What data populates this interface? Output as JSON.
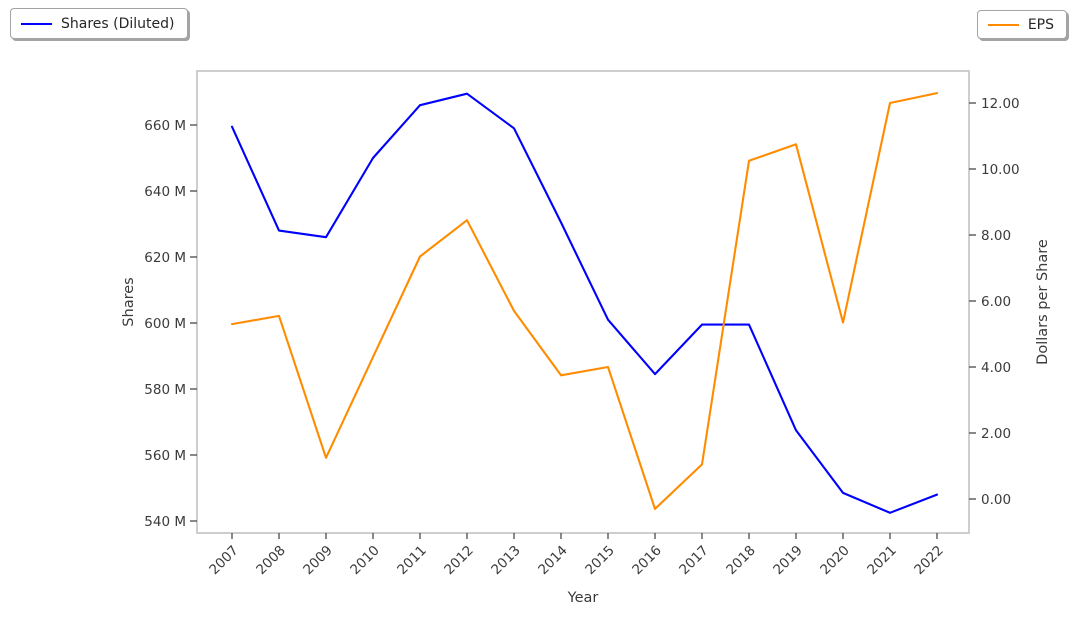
{
  "figure": {
    "legend_left": {
      "label": "Shares (Diluted)",
      "color": "#0000ff"
    },
    "legend_right": {
      "label": "EPS",
      "color": "#ff8c00"
    }
  },
  "chart_data": {
    "type": "line",
    "title": "",
    "xlabel": "Year",
    "ylabel_left": "Shares",
    "ylabel_right": "Dollars per Share",
    "categories": [
      "2007",
      "2008",
      "2009",
      "2010",
      "2011",
      "2012",
      "2013",
      "2014",
      "2015",
      "2016",
      "2017",
      "2018",
      "2019",
      "2020",
      "2021",
      "2022"
    ],
    "series": [
      {
        "name": "Shares (Diluted)",
        "axis": "left",
        "color": "#0000ff",
        "unit": "millions of shares",
        "values": [
          659.5,
          628.0,
          626.0,
          650.0,
          666.0,
          669.5,
          659.0,
          630.5,
          601.0,
          584.5,
          599.5,
          599.5,
          567.5,
          548.5,
          542.5,
          548.0
        ]
      },
      {
        "name": "EPS",
        "axis": "right",
        "color": "#ff8c00",
        "unit": "dollars per share",
        "values": [
          5.3,
          5.55,
          1.25,
          4.3,
          7.35,
          8.45,
          5.7,
          3.75,
          4.0,
          -0.3,
          1.05,
          10.25,
          10.75,
          5.35,
          12.0,
          12.3
        ]
      }
    ],
    "left_axis": {
      "min": 540,
      "max": 660,
      "step": 20,
      "tick_labels": [
        "540 M",
        "560 M",
        "580 M",
        "600 M",
        "620 M",
        "640 M",
        "660 M"
      ]
    },
    "right_axis": {
      "min": 0,
      "max": 12,
      "step": 2,
      "tick_labels": [
        "0.00",
        "2.00",
        "4.00",
        "6.00",
        "8.00",
        "10.00",
        "12.00"
      ]
    },
    "legend_position": "top corners, outside plot",
    "grid": false
  }
}
